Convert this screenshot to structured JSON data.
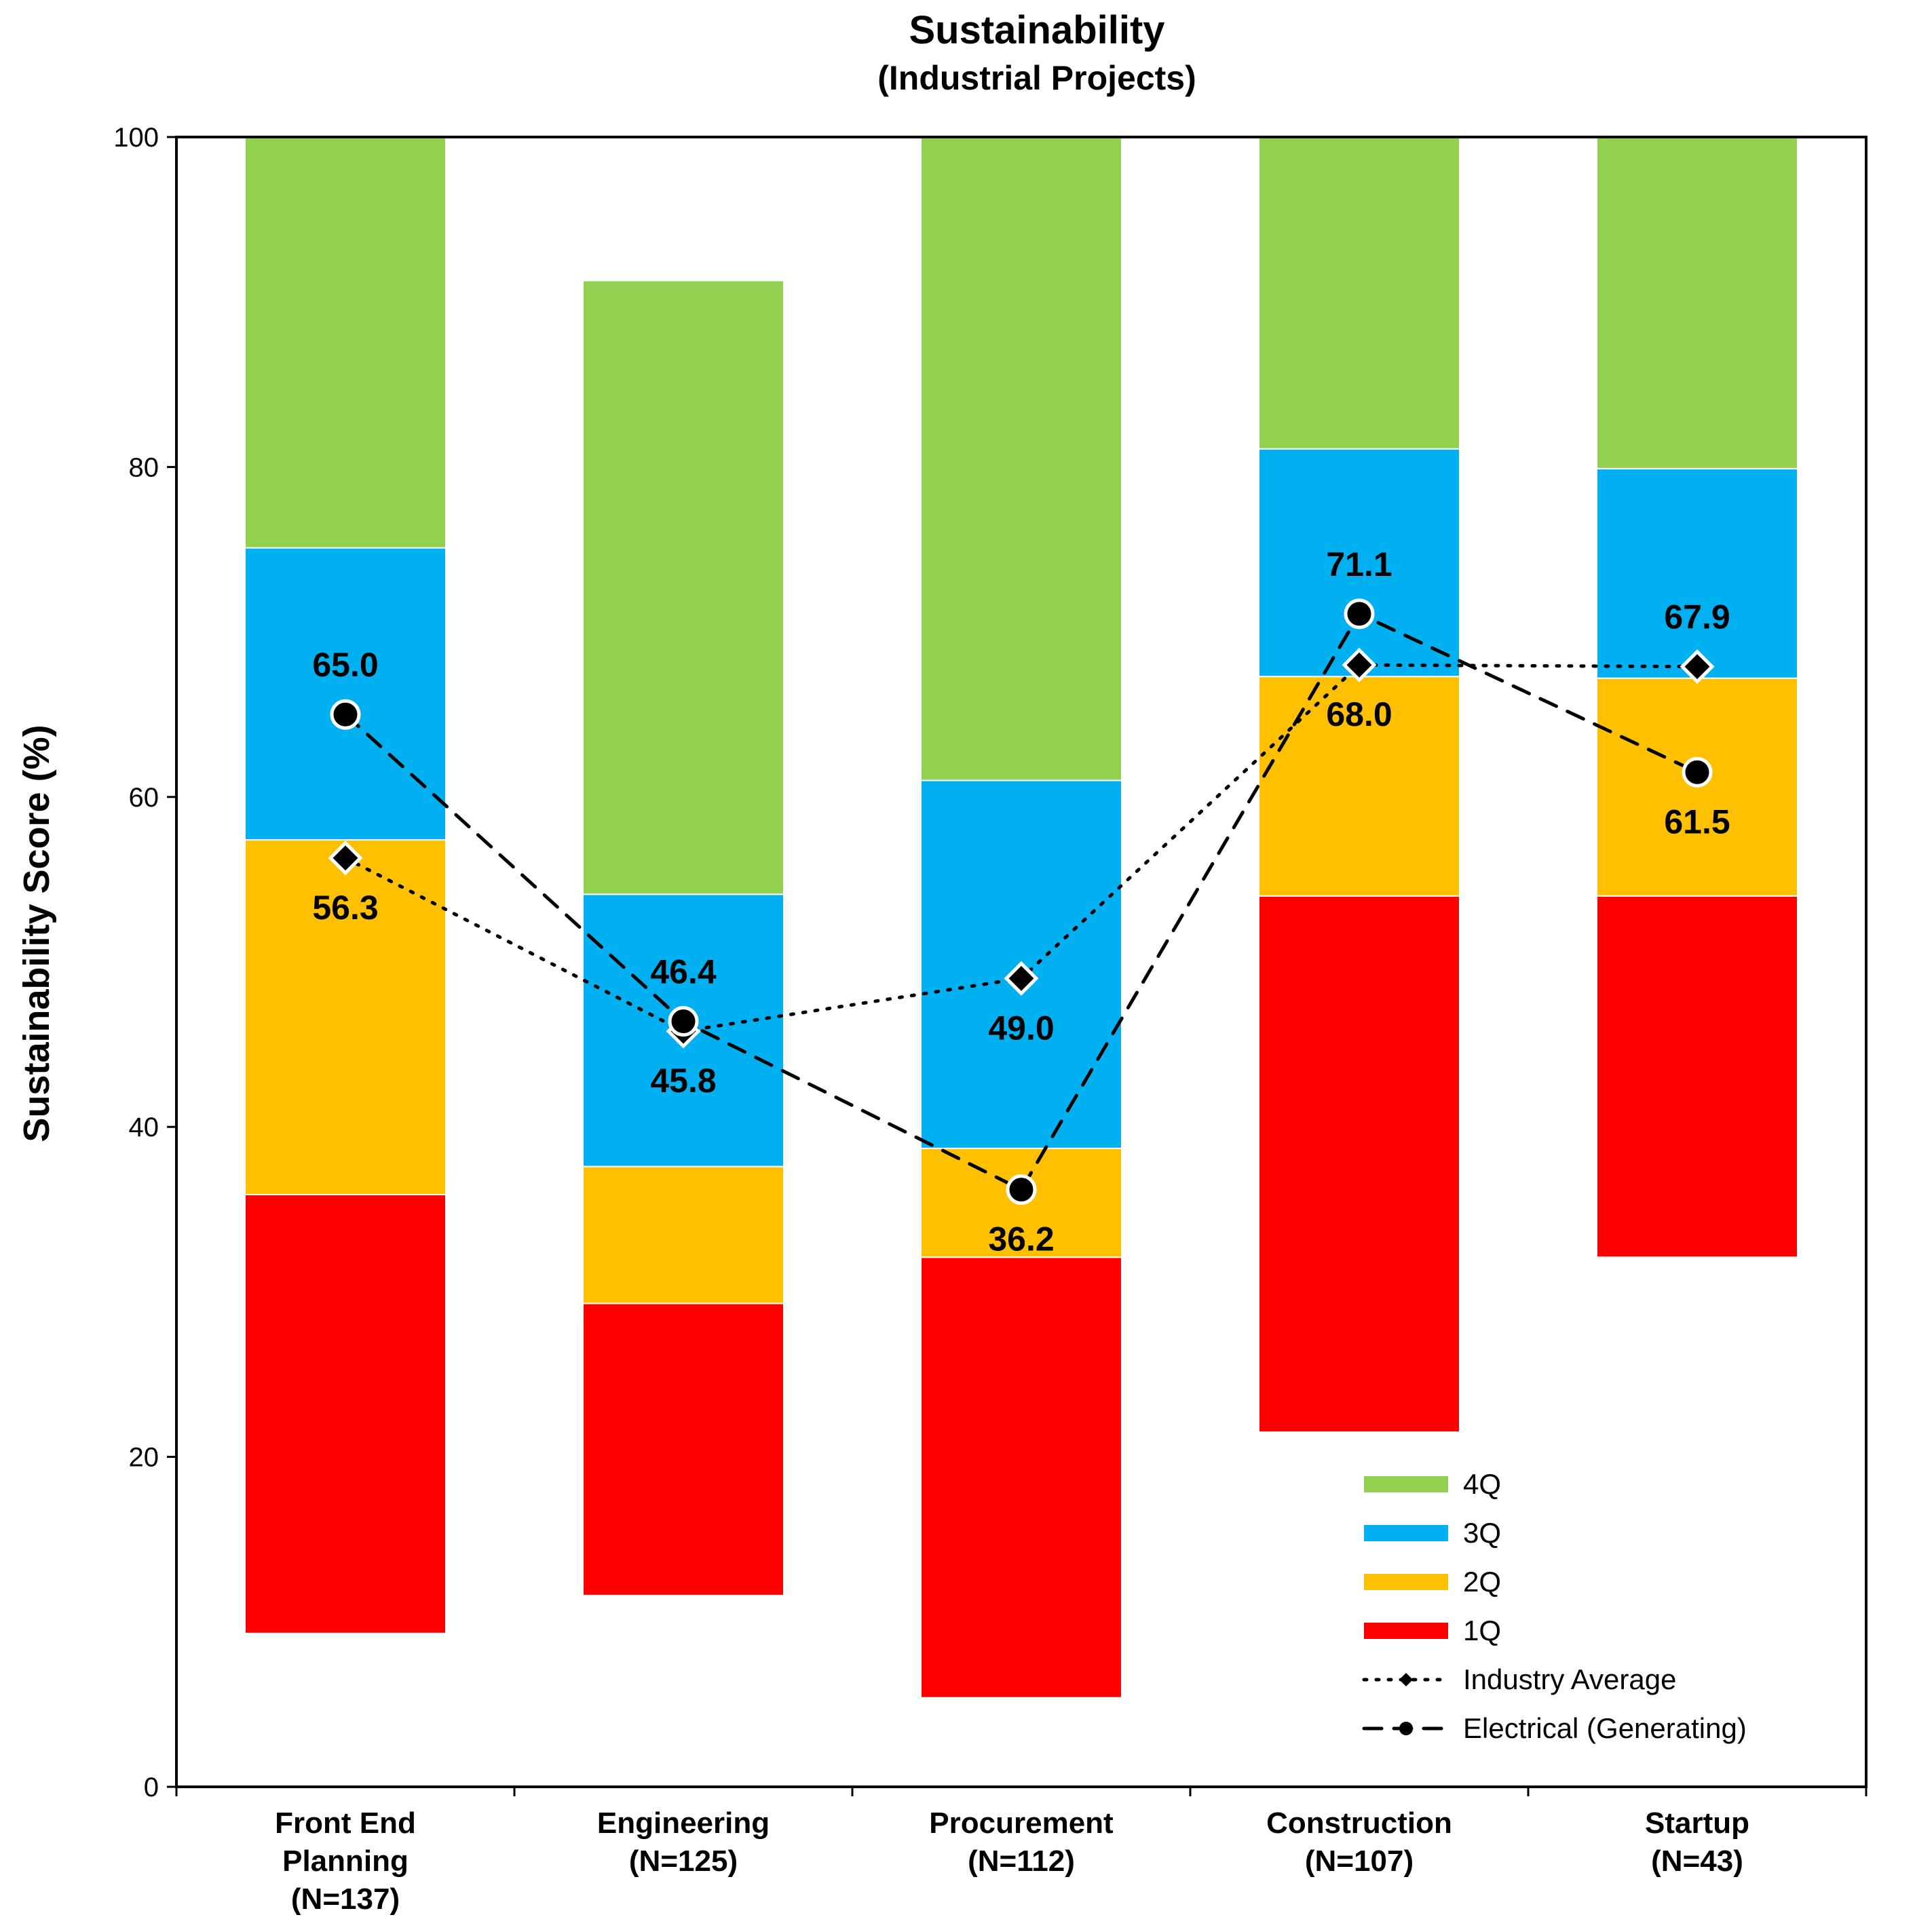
{
  "chart_data": {
    "type": "bar",
    "title": "Sustainability",
    "subtitle": "(Industrial Projects)",
    "xlabel": "",
    "ylabel": "Sustainability Score (%)",
    "ylim": [
      0,
      100
    ],
    "yticks": [
      0,
      20,
      40,
      60,
      80,
      100
    ],
    "grid": false,
    "legend_position": "bottom-right",
    "categories": [
      {
        "lines": [
          "Front End",
          "Planning",
          "(N=137)"
        ]
      },
      {
        "lines": [
          "Engineering",
          "(N=125)"
        ]
      },
      {
        "lines": [
          "Procurement",
          "(N=112)"
        ]
      },
      {
        "lines": [
          "Construction",
          "(N=107)"
        ]
      },
      {
        "lines": [
          "Startup",
          "(N=43)"
        ]
      }
    ],
    "quartile_bars": [
      {
        "category_index": 0,
        "q1": [
          9.3,
          35.9
        ],
        "q2": [
          35.9,
          57.4
        ],
        "q3": [
          57.4,
          75.1
        ],
        "q4": [
          75.1,
          100
        ]
      },
      {
        "category_index": 1,
        "q1": [
          11.6,
          29.3
        ],
        "q2": [
          29.3,
          37.6
        ],
        "q3": [
          37.6,
          54.1
        ],
        "q4": [
          54.1,
          91.3
        ]
      },
      {
        "category_index": 2,
        "q1": [
          5.4,
          32.1
        ],
        "q2": [
          32.1,
          38.7
        ],
        "q3": [
          38.7,
          61.0
        ],
        "q4": [
          61.0,
          100
        ]
      },
      {
        "category_index": 3,
        "q1": [
          21.5,
          54.0
        ],
        "q2": [
          54.0,
          67.3
        ],
        "q3": [
          67.3,
          81.1
        ],
        "q4": [
          81.1,
          100
        ]
      },
      {
        "category_index": 4,
        "q1": [
          32.1,
          54.0
        ],
        "q2": [
          54.0,
          67.2
        ],
        "q3": [
          67.2,
          79.9
        ],
        "q4": [
          79.9,
          100
        ]
      }
    ],
    "series": [
      {
        "name": "Industry Average",
        "style": "dotted",
        "marker": "diamond",
        "values": [
          56.3,
          45.8,
          49.0,
          68.0,
          67.9
        ],
        "labels": [
          "56.3",
          "45.8",
          "49.0",
          "68.0",
          "67.9"
        ],
        "label_positions": [
          "below",
          "below",
          "below",
          "below",
          "above"
        ]
      },
      {
        "name": "Electrical (Generating)",
        "style": "dashed",
        "marker": "circle",
        "values": [
          65.0,
          46.4,
          36.2,
          71.1,
          61.5
        ],
        "labels": [
          "65.0",
          "46.4",
          "36.2",
          "71.1",
          "61.5"
        ],
        "label_positions": [
          "above",
          "above",
          "below",
          "above",
          "below"
        ]
      }
    ],
    "legend": [
      {
        "label": "4Q",
        "kind": "swatch",
        "color": "#92D050"
      },
      {
        "label": "3Q",
        "kind": "swatch",
        "color": "#00B0F0"
      },
      {
        "label": "2Q",
        "kind": "swatch",
        "color": "#FFC000"
      },
      {
        "label": "1Q",
        "kind": "swatch",
        "color": "#FF0000"
      },
      {
        "label": "Industry Average",
        "kind": "line",
        "style": "dotted",
        "marker": "diamond"
      },
      {
        "label": "Electrical (Generating)",
        "kind": "line",
        "style": "dashed",
        "marker": "circle"
      }
    ],
    "colors": {
      "q1": "#FF0000",
      "q2": "#FFC000",
      "q3": "#00B0F0",
      "q4": "#92D050",
      "line": "#000000",
      "marker_outline": "#FFFFFF"
    }
  }
}
